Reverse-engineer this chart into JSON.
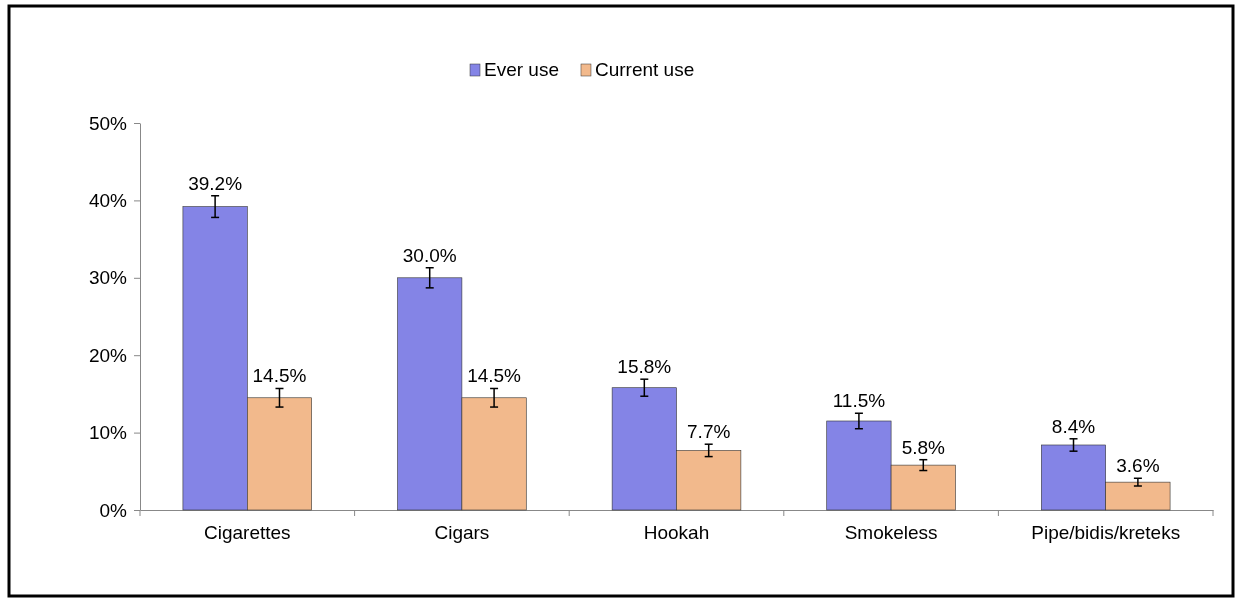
{
  "chart_data": {
    "type": "bar",
    "categories": [
      "Cigarettes",
      "Cigars",
      "Hookah",
      "Smokeless",
      "Pipe/bidis/kreteks"
    ],
    "series": [
      {
        "name": "Ever use",
        "color": "#8484e6",
        "values": [
          39.2,
          30.0,
          15.8,
          11.5,
          8.4
        ],
        "errors": [
          1.4,
          1.3,
          1.1,
          1.0,
          0.8
        ]
      },
      {
        "name": "Current use",
        "color": "#f2b98c",
        "values": [
          14.5,
          14.5,
          7.7,
          5.8,
          3.6
        ],
        "errors": [
          1.2,
          1.2,
          0.8,
          0.7,
          0.5
        ]
      }
    ],
    "ylim": [
      0,
      50
    ],
    "yticks": [
      {
        "value": 0,
        "label": "0%"
      },
      {
        "value": 10,
        "label": "10%"
      },
      {
        "value": 20,
        "label": "20%"
      },
      {
        "value": 30,
        "label": "30%"
      },
      {
        "value": 40,
        "label": "40%"
      },
      {
        "value": 50,
        "label": "50%"
      }
    ],
    "value_labels": [
      [
        "39.2%",
        "30.0%",
        "15.8%",
        "11.5%",
        "8.4%"
      ],
      [
        "14.5%",
        "14.5%",
        "7.7%",
        "5.8%",
        "3.6%"
      ]
    ],
    "legend": "top",
    "grid": false
  }
}
